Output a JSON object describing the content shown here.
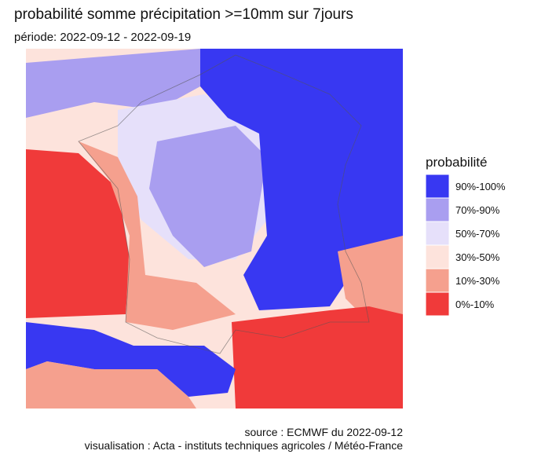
{
  "header": {
    "title": "probabilité somme précipitation >=10mm sur 7jours",
    "subtitle": "période: 2022-09-12 - 2022-09-19"
  },
  "legend": {
    "title": "probabilité",
    "items": [
      {
        "label": "90%-100%",
        "color": "#3838f2"
      },
      {
        "label": "70%-90%",
        "color": "#a99ef0"
      },
      {
        "label": "50%-70%",
        "color": "#e6e0fa"
      },
      {
        "label": "30%-50%",
        "color": "#fde3dc"
      },
      {
        "label": "10%-30%",
        "color": "#f5a08e"
      },
      {
        "label": "0%-10%",
        "color": "#f03a3a"
      }
    ]
  },
  "footer": {
    "source": "source : ECMWF du 2022-09-12",
    "credit": "visualisation : Acta - instituts techniques agricoles / Météo-France"
  }
}
